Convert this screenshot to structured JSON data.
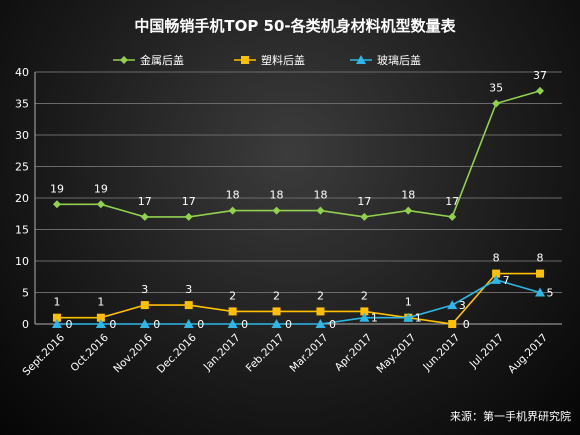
{
  "chart_data": {
    "type": "line",
    "title": "中国畅销手机TOP 50-各类机身材料机型数量表",
    "source": "来源：第一手机界研究院",
    "categories": [
      "Sept.2016",
      "Oct.2016",
      "Nov.2016",
      "Dec.2016",
      "Jan.2017",
      "Feb.2017",
      "Mar.2017",
      "Apr.2017",
      "May.2017",
      "Jun.2017",
      "Jul.2017",
      "Aug.2017"
    ],
    "ylim": [
      0,
      40
    ],
    "yticks": [
      "0",
      "5",
      "10",
      "15",
      "20",
      "25",
      "30",
      "35",
      "40"
    ],
    "grid": true,
    "legend_position": "top",
    "series": [
      {
        "name": "金属后盖",
        "color": "#92d050",
        "marker": "diamond",
        "values": [
          19,
          19,
          17,
          17,
          18,
          18,
          18,
          17,
          18,
          17,
          35,
          37
        ],
        "labels": [
          "19",
          "19",
          "17",
          "17",
          "18",
          "18",
          "18",
          "17",
          "18",
          "17",
          "35",
          "37"
        ]
      },
      {
        "name": "塑料后盖",
        "color": "#ffc000",
        "marker": "square",
        "values": [
          1,
          1,
          3,
          3,
          2,
          2,
          2,
          2,
          1,
          0,
          8,
          8
        ],
        "labels": [
          "1",
          "1",
          "3",
          "3",
          "2",
          "2",
          "2",
          "2",
          "1",
          "0",
          "8",
          "8"
        ]
      },
      {
        "name": "玻璃后盖",
        "color": "#2eb6e6",
        "marker": "triangle",
        "values": [
          0,
          0,
          0,
          0,
          0,
          0,
          0,
          1,
          1,
          3,
          7,
          5
        ],
        "labels": [
          "0",
          "0",
          "0",
          "0",
          "0",
          "0",
          "0",
          "1",
          "1",
          "3",
          "7",
          "5"
        ]
      }
    ]
  }
}
